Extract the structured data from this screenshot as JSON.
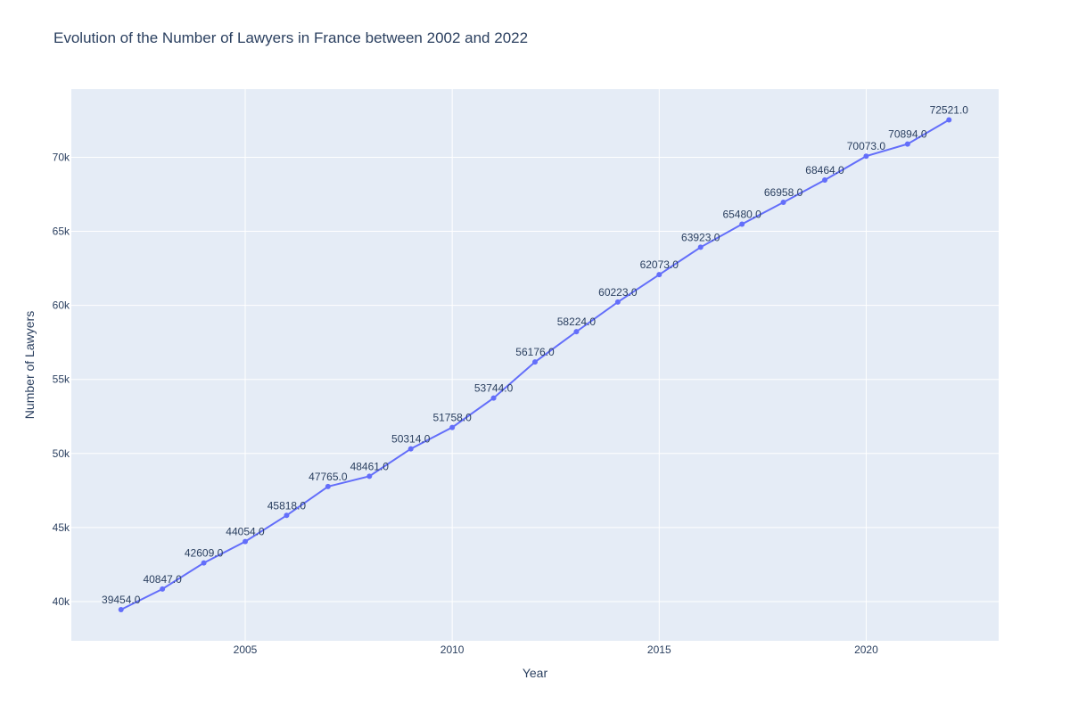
{
  "chart_data": {
    "type": "line",
    "title": "Evolution of the Number of Lawyers in France between 2002 and 2022",
    "xlabel": "Year",
    "ylabel": "Number of Lawyers",
    "x": [
      2002,
      2003,
      2004,
      2005,
      2006,
      2007,
      2008,
      2009,
      2010,
      2011,
      2012,
      2013,
      2014,
      2015,
      2016,
      2017,
      2018,
      2019,
      2020,
      2021,
      2022
    ],
    "series": [
      {
        "values": [
          39454,
          40847,
          42609,
          44054,
          45818,
          47765,
          48461,
          50314,
          51758,
          53744,
          56176,
          58224,
          60223,
          62073,
          63923,
          65480,
          66958,
          68464,
          70073,
          70894,
          72521
        ],
        "data_labels": [
          "39454.0",
          "40847.0",
          "42609.0",
          "44054.0",
          "45818.0",
          "47765.0",
          "48461.0",
          "50314.0",
          "51758.0",
          "53744.0",
          "56176.0",
          "58224.0",
          "60223.0",
          "62073.0",
          "63923.0",
          "65480.0",
          "66958.0",
          "68464.0",
          "70073.0",
          "70894.0",
          "72521.0"
        ],
        "color": "#636efa"
      }
    ],
    "xlim": [
      2000.8,
      2023.2
    ],
    "ylim": [
      37350,
      74600
    ],
    "xticks": [
      2005,
      2010,
      2015,
      2020
    ],
    "xtick_labels": [
      "2005",
      "2010",
      "2015",
      "2020"
    ],
    "yticks": [
      40000,
      45000,
      50000,
      55000,
      60000,
      65000,
      70000
    ],
    "ytick_labels": [
      "40k",
      "45k",
      "50k",
      "55k",
      "60k",
      "65k",
      "70k"
    ],
    "grid": true,
    "legend": "none",
    "plot_bg": "#e5ecf6",
    "text_color": "#2a3f5f"
  }
}
